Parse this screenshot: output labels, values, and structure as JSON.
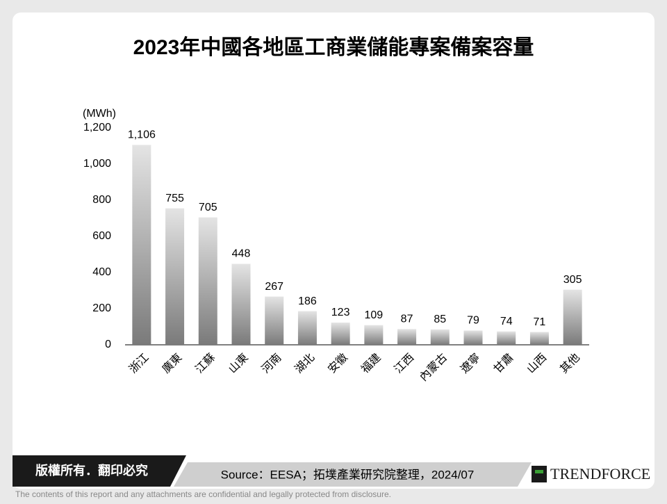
{
  "chart_data": {
    "type": "bar",
    "title": "2023年中國各地區工商業儲能專案備案容量",
    "y_label": "(MWh)",
    "categories": [
      "浙江",
      "廣東",
      "江蘇",
      "山東",
      "河南",
      "湖北",
      "安徽",
      "福建",
      "江西",
      "內蒙古",
      "遼寧",
      "甘肅",
      "山西",
      "其他"
    ],
    "values": [
      1106,
      755,
      705,
      448,
      267,
      186,
      123,
      109,
      87,
      85,
      79,
      74,
      71,
      305
    ],
    "value_labels": [
      "1,106",
      "755",
      "705",
      "448",
      "267",
      "186",
      "123",
      "109",
      "87",
      "85",
      "79",
      "74",
      "71",
      "305"
    ],
    "color": "#7a7a7a",
    "ylim": [
      0,
      1200
    ],
    "yticks": [
      0,
      200,
      400,
      600,
      800,
      {
        "value": 1000,
        "label": "1,000"
      },
      {
        "value": 1200,
        "label": "1,200"
      }
    ]
  },
  "footer": {
    "copyright": "版權所有．翻印必究",
    "source": "Source：EESA；拓墣產業研究院整理，2024/07",
    "brand": "TRENDFORCE",
    "disclaimer": "The contents of this report and any attachments are confidential and legally protected from disclosure."
  }
}
